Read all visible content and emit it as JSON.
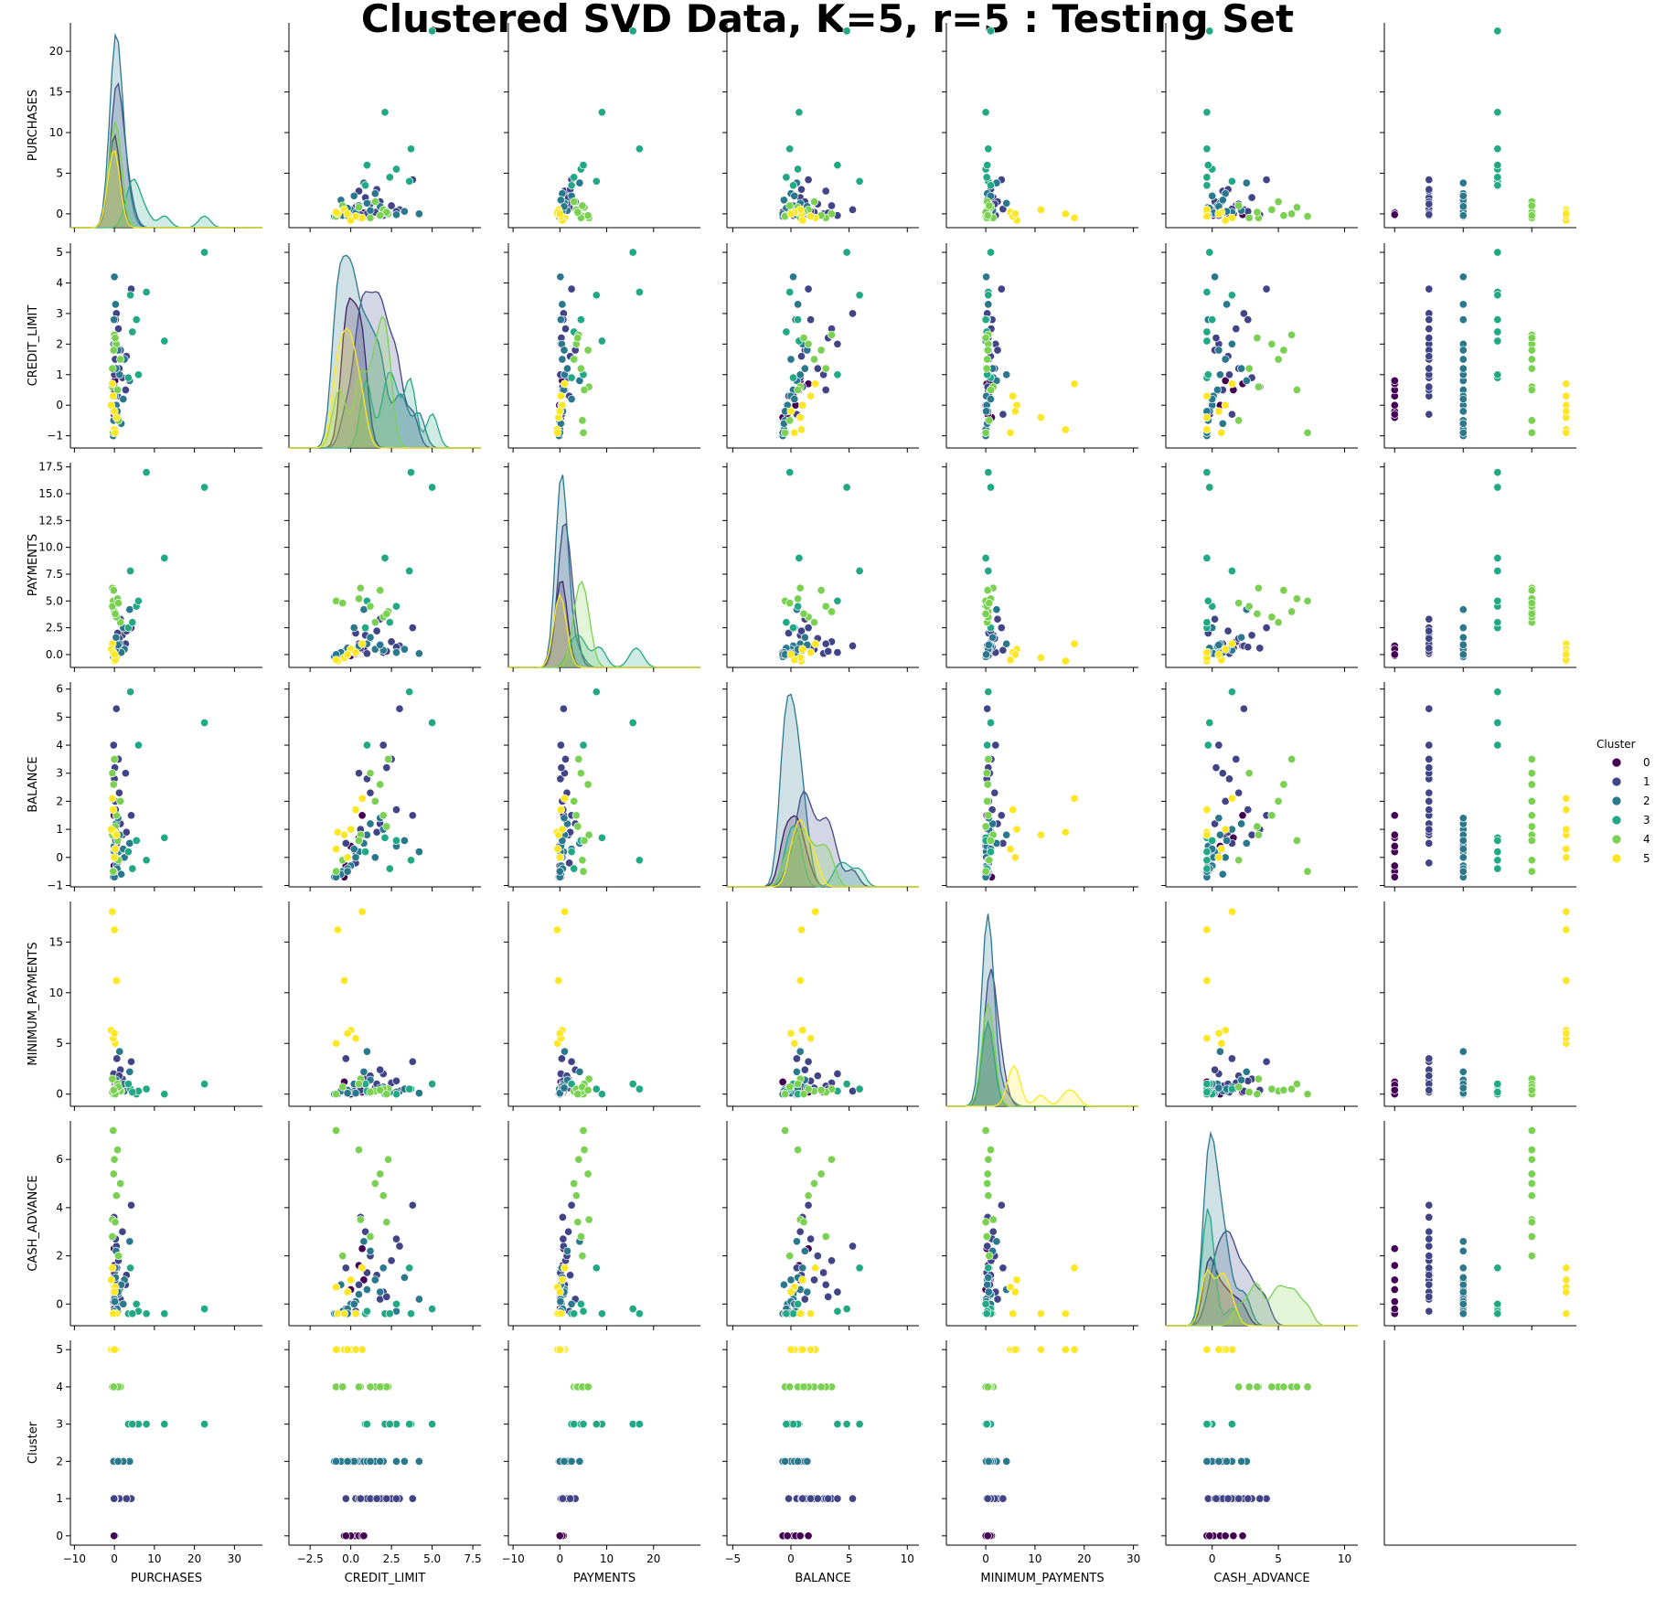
{
  "title": "Clustered SVD Data, K=5, r=5 : Testing Set",
  "legend": {
    "title": "Cluster",
    "placement": "right",
    "labels": [
      "0",
      "1",
      "2",
      "3",
      "4",
      "5"
    ]
  },
  "chart_data": {
    "type": "scatter",
    "kind": "pairplot",
    "hue": "Cluster",
    "diagonal": "kde",
    "palette": {
      "0": "#440154",
      "1": "#414487",
      "2": "#2a788e",
      "3": "#22a884",
      "4": "#7ad151",
      "5": "#fde725"
    },
    "variables": [
      "PURCHASES",
      "CREDIT_LIMIT",
      "PAYMENTS",
      "BALANCE",
      "MINIMUM_PAYMENTS",
      "CASH_ADVANCE",
      "Cluster"
    ],
    "axes": {
      "PURCHASES": {
        "range": [
          -11,
          37
        ],
        "ticks": [
          -10,
          0,
          10,
          20,
          30
        ],
        "tick_labels": [
          "−10",
          "0",
          "10",
          "20",
          "30"
        ],
        "ytick_values": [
          0,
          5,
          10,
          15,
          20
        ],
        "ytick_labels": [
          "0",
          "5",
          "10",
          "15",
          "20"
        ],
        "yrange": [
          -1.7,
          23.5
        ]
      },
      "CREDIT_LIMIT": {
        "range": [
          -3.8,
          8.0
        ],
        "ticks": [
          -2.5,
          0,
          2.5,
          5,
          7.5
        ],
        "tick_labels": [
          "−2.5",
          "0.0",
          "2.5",
          "5.0",
          "7.5"
        ],
        "ytick_values": [
          -1,
          0,
          1,
          2,
          3,
          4,
          5
        ],
        "ytick_labels": [
          "−1",
          "0",
          "1",
          "2",
          "3",
          "4",
          "5"
        ],
        "yrange": [
          -1.4,
          5.3
        ]
      },
      "PAYMENTS": {
        "range": [
          -11,
          30
        ],
        "ticks": [
          -10,
          0,
          10,
          20
        ],
        "tick_labels": [
          "−10",
          "0",
          "10",
          "20"
        ],
        "ytick_values": [
          0,
          2.5,
          5,
          7.5,
          10,
          12.5,
          15,
          17.5
        ],
        "ytick_labels": [
          "0.0",
          "2.5",
          "5.0",
          "7.5",
          "10.0",
          "12.5",
          "15.0",
          "17.5"
        ],
        "yrange": [
          -1.2,
          17.9
        ]
      },
      "BALANCE": {
        "range": [
          -5.5,
          11
        ],
        "ticks": [
          -5,
          0,
          5,
          10
        ],
        "tick_labels": [
          "−5",
          "0",
          "5",
          "10"
        ],
        "ytick_values": [
          -1,
          0,
          1,
          2,
          3,
          4,
          5,
          6
        ],
        "ytick_labels": [
          "−1",
          "0",
          "1",
          "2",
          "3",
          "4",
          "5",
          "6"
        ],
        "yrange": [
          -1.05,
          6.25
        ]
      },
      "MINIMUM_PAYMENTS": {
        "range": [
          -8,
          31
        ],
        "ticks": [
          0,
          10,
          20,
          30
        ],
        "tick_labels": [
          "0",
          "10",
          "20",
          "30"
        ],
        "ytick_values": [
          0,
          5,
          10,
          15
        ],
        "ytick_labels": [
          "0",
          "5",
          "10",
          "15"
        ],
        "yrange": [
          -1.2,
          19
        ]
      },
      "CASH_ADVANCE": {
        "range": [
          -3.5,
          11
        ],
        "ticks": [
          0,
          5,
          10
        ],
        "tick_labels": [
          "0",
          "5",
          "10"
        ],
        "ytick_values": [
          0,
          2,
          4,
          6
        ],
        "ytick_labels": [
          "0",
          "2",
          "4",
          "6"
        ],
        "yrange": [
          -0.9,
          7.6
        ]
      },
      "Cluster": {
        "range": [
          -0.3,
          5.3
        ],
        "ticks": [
          0,
          2,
          4
        ],
        "tick_labels": [
          "0",
          "2",
          "4"
        ],
        "ytick_values": [
          0,
          1,
          2,
          3,
          4,
          5
        ],
        "ytick_labels": [
          "0",
          "1",
          "2",
          "3",
          "4",
          "5"
        ],
        "yrange": [
          -0.25,
          5.25
        ]
      }
    },
    "series": [
      {
        "cluster": 0,
        "points": [
          [
            0.1,
            -0.2,
            0.3,
            -0.5,
            0.3,
            -0.3
          ],
          [
            -0.2,
            0.3,
            0.1,
            0.2,
            0.1,
            0.1
          ],
          [
            0.0,
            0.5,
            0.6,
            0.7,
            0.5,
            1.6
          ],
          [
            0.2,
            -0.4,
            0.2,
            -0.7,
            1.2,
            -0.4
          ],
          [
            -0.1,
            0.7,
            0.8,
            1.5,
            0.2,
            2.3
          ],
          [
            0.0,
            0.0,
            -0.1,
            0.4,
            0.0,
            0.6
          ],
          [
            0.1,
            0.8,
            0.5,
            0.8,
            0.9,
            1.0
          ],
          [
            -0.1,
            -0.3,
            0.0,
            -0.3,
            0.4,
            -0.2
          ]
        ]
      },
      {
        "cluster": 1,
        "points": [
          [
            0.2,
            1.5,
            0.5,
            2.0,
            0.6,
            1.0
          ],
          [
            1.0,
            2.5,
            1.2,
            3.5,
            1.1,
            1.8
          ],
          [
            0.5,
            3.0,
            0.8,
            5.3,
            0.3,
            2.4
          ],
          [
            2.0,
            0.9,
            1.8,
            0.8,
            1.5,
            3.0
          ],
          [
            -0.2,
            2.0,
            0.2,
            4.0,
            2.0,
            0.5
          ],
          [
            4.2,
            3.8,
            2.5,
            1.5,
            3.2,
            4.1
          ],
          [
            0.8,
            0.3,
            2.0,
            -0.2,
            0.6,
            -0.3
          ],
          [
            0.0,
            1.0,
            0.1,
            2.8,
            0.2,
            1.3
          ],
          [
            1.5,
            1.8,
            3.3,
            1.2,
            2.4,
            0.2
          ],
          [
            0.3,
            2.8,
            0.7,
            1.7,
            1.3,
            2.7
          ],
          [
            2.8,
            0.5,
            1.0,
            3.0,
            0.8,
            0.8
          ],
          [
            0.6,
            -0.3,
            0.4,
            0.5,
            3.5,
            1.5
          ],
          [
            1.2,
            1.2,
            1.5,
            2.3,
            1.8,
            2.0
          ],
          [
            0.1,
            2.2,
            0.3,
            3.2,
            0.5,
            0.3
          ],
          [
            3.0,
            1.6,
            2.2,
            0.9,
            1.0,
            1.2
          ],
          [
            -0.1,
            0.6,
            0.6,
            1.0,
            0.4,
            3.6
          ]
        ]
      },
      {
        "cluster": 2,
        "points": [
          [
            0.0,
            -0.8,
            0.0,
            -0.6,
            0.0,
            -0.4
          ],
          [
            0.5,
            0.0,
            0.3,
            -0.3,
            0.2,
            0.0
          ],
          [
            -0.2,
            -0.5,
            -0.1,
            -0.5,
            0.5,
            -0.3
          ],
          [
            1.0,
            0.5,
            0.8,
            0.2,
            1.0,
            0.4
          ],
          [
            2.5,
            1.5,
            0.5,
            0.0,
            0.3,
            1.0
          ],
          [
            -0.3,
            -1.0,
            -0.2,
            -0.7,
            0.0,
            -0.4
          ],
          [
            0.2,
            2.0,
            0.4,
            1.0,
            0.7,
            1.5
          ],
          [
            0.0,
            4.2,
            0.1,
            0.2,
            0.1,
            0.2
          ],
          [
            3.8,
            0.8,
            4.2,
            0.5,
            2.2,
            2.6
          ],
          [
            0.7,
            -0.2,
            0.6,
            -0.4,
            0.4,
            -0.2
          ],
          [
            1.3,
            1.0,
            1.0,
            0.8,
            4.2,
            0.6
          ],
          [
            0.1,
            0.3,
            0.1,
            0.0,
            0.1,
            0.1
          ],
          [
            -0.1,
            2.8,
            0.2,
            0.4,
            0.2,
            -0.3
          ],
          [
            1.7,
            -0.6,
            0.2,
            -0.6,
            0.3,
            0.8
          ],
          [
            0.4,
            1.2,
            1.6,
            1.2,
            1.4,
            2.2
          ],
          [
            0.0,
            -0.9,
            0.0,
            -0.7,
            0.0,
            -0.4
          ],
          [
            2.2,
            0.2,
            2.5,
            0.3,
            1.0,
            0.0
          ],
          [
            0.3,
            3.3,
            0.5,
            0.6,
            0.5,
            1.1
          ],
          [
            -0.2,
            -0.2,
            0.0,
            -0.5,
            0.1,
            -0.4
          ],
          [
            0.9,
            1.8,
            0.9,
            1.4,
            0.6,
            0.5
          ]
        ]
      },
      {
        "cluster": 3,
        "points": [
          [
            22.5,
            5.0,
            15.6,
            4.8,
            1.0,
            -0.2
          ],
          [
            12.5,
            2.1,
            9.0,
            0.7,
            0.0,
            -0.4
          ],
          [
            8.0,
            3.7,
            17.0,
            -0.1,
            0.5,
            -0.4
          ],
          [
            4.0,
            3.6,
            7.8,
            5.9,
            0.5,
            1.5
          ],
          [
            5.5,
            2.8,
            4.5,
            0.6,
            0.0,
            0.0
          ],
          [
            3.5,
            0.9,
            2.5,
            0.2,
            1.0,
            -0.4
          ],
          [
            6.0,
            1.0,
            5.0,
            4.0,
            0.3,
            -0.3
          ],
          [
            4.5,
            2.4,
            3.0,
            -0.4,
            0.2,
            -0.4
          ]
        ]
      },
      {
        "cluster": 4,
        "points": [
          [
            0.0,
            2.3,
            4.0,
            3.5,
            0.5,
            6.0
          ],
          [
            1.5,
            1.5,
            3.0,
            2.0,
            0.3,
            5.0
          ],
          [
            -0.5,
            0.6,
            6.2,
            0.8,
            1.5,
            3.5
          ],
          [
            -0.3,
            -0.9,
            5.0,
            -0.5,
            0.0,
            7.2
          ],
          [
            0.5,
            2.0,
            3.5,
            1.5,
            0.5,
            4.5
          ],
          [
            -0.5,
            1.2,
            4.5,
            3.0,
            0.2,
            2.8
          ],
          [
            0.8,
            0.5,
            5.2,
            0.6,
            1.0,
            6.4
          ],
          [
            0.2,
            2.2,
            3.8,
            1.1,
            0.0,
            3.4
          ],
          [
            1.0,
            -0.5,
            4.8,
            -0.1,
            0.7,
            2.0
          ],
          [
            -0.2,
            1.8,
            6.0,
            2.6,
            0.4,
            5.4
          ]
        ]
      },
      {
        "cluster": 5,
        "points": [
          [
            -0.5,
            0.7,
            1.0,
            2.1,
            18.0,
            1.5
          ],
          [
            0.0,
            -0.8,
            -0.6,
            0.9,
            16.2,
            -0.4
          ],
          [
            0.5,
            -0.4,
            -0.3,
            0.8,
            11.2,
            -0.4
          ],
          [
            -0.8,
            0.0,
            0.5,
            1.0,
            6.3,
            1.0
          ],
          [
            0.2,
            -0.9,
            -0.5,
            0.3,
            5.0,
            0.7
          ],
          [
            -0.3,
            0.3,
            0.2,
            1.7,
            5.5,
            -0.4
          ],
          [
            0.0,
            -0.2,
            0.0,
            0.0,
            6.0,
            0.5
          ]
        ]
      }
    ],
    "kde": {
      "note": "diagonal density curves per cluster",
      "x_grid_points": 60
    }
  }
}
